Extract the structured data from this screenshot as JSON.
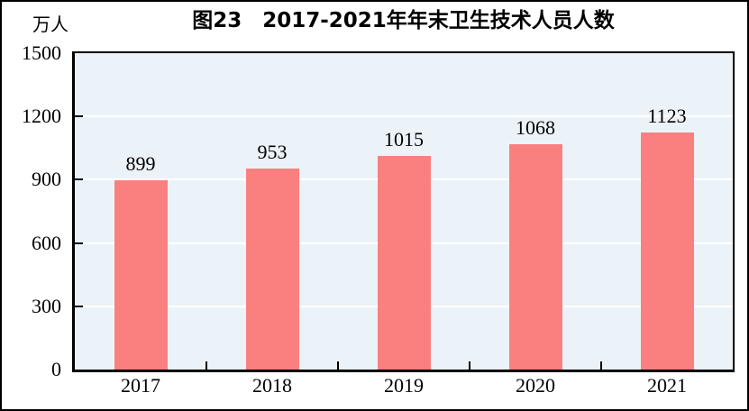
{
  "chart_data": {
    "type": "bar",
    "title": "图23　2017-2021年年末卫生技术人员人数",
    "unit_label": "万人",
    "ylabel": "万人",
    "xlabel": "",
    "categories": [
      "2017",
      "2018",
      "2019",
      "2020",
      "2021"
    ],
    "values": [
      899,
      953,
      1015,
      1068,
      1123
    ],
    "ylim": [
      0,
      1500
    ],
    "yticks": [
      0,
      300,
      600,
      900,
      1200,
      1500
    ],
    "grid": true,
    "legend_position": "none",
    "colors": {
      "bar": "#FA8080",
      "plot_bg": "#ECF3F8",
      "gridline": "#FFFFFF",
      "axis": "#000000",
      "text": "#000000"
    }
  }
}
